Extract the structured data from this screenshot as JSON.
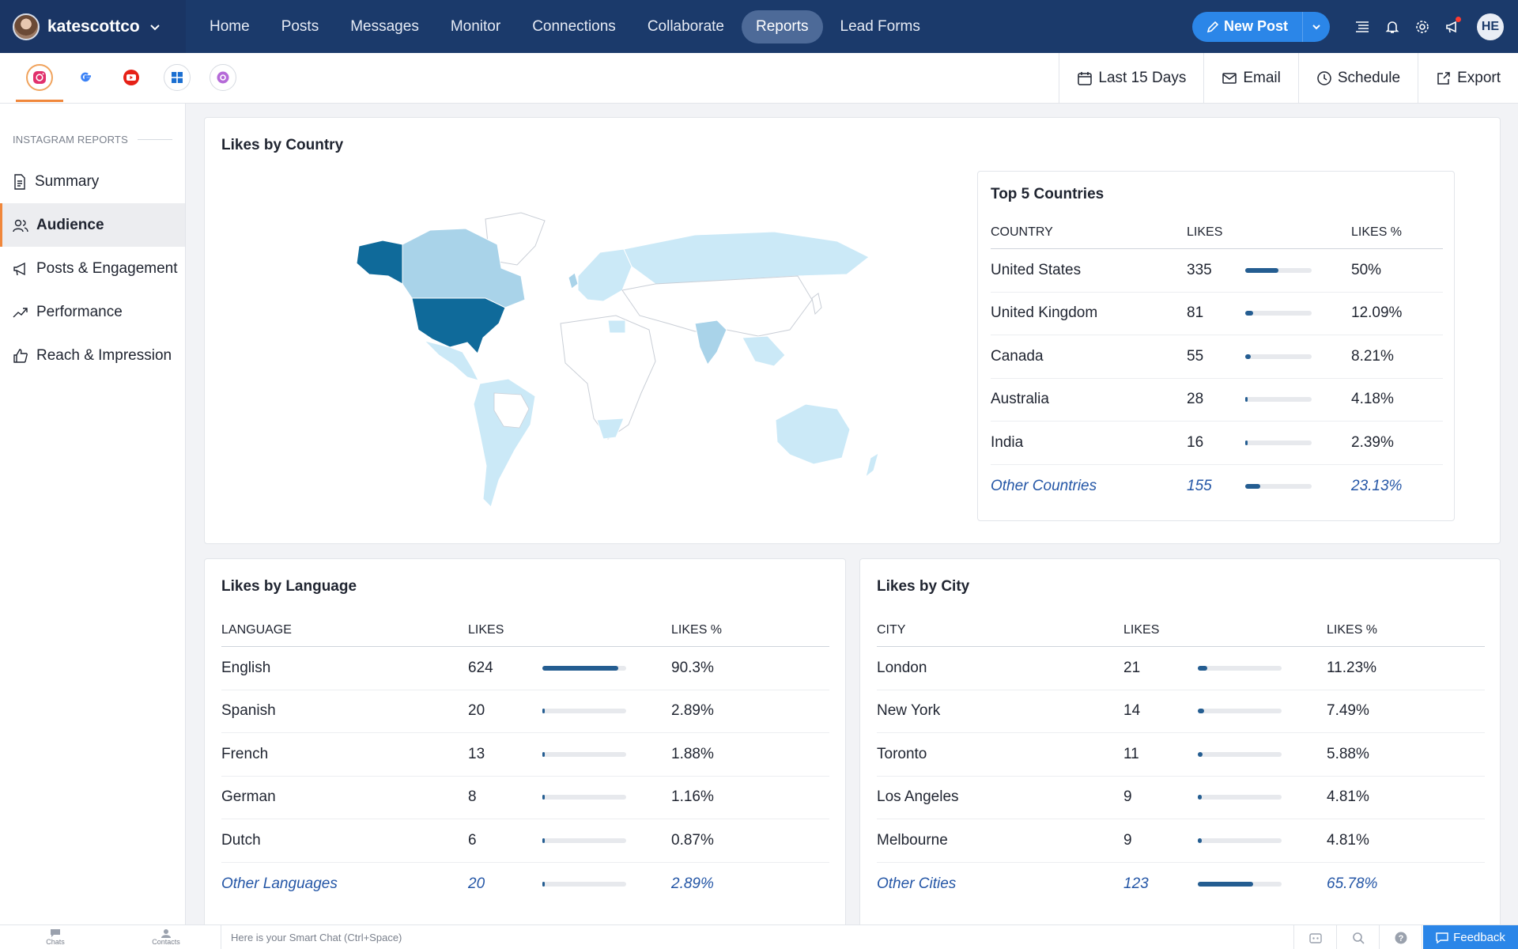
{
  "topnav": {
    "account_name": "katescottco",
    "links": [
      {
        "label": "Home"
      },
      {
        "label": "Posts"
      },
      {
        "label": "Messages"
      },
      {
        "label": "Monitor"
      },
      {
        "label": "Connections"
      },
      {
        "label": "Collaborate"
      },
      {
        "label": "Reports",
        "active": true
      },
      {
        "label": "Lead Forms"
      }
    ],
    "new_post_label": "New Post",
    "user_initials": "HE"
  },
  "subbar": {
    "channels": [
      "instagram-icon",
      "google-icon",
      "youtube-icon",
      "microsoft-icon",
      "threads-icon"
    ],
    "date_range": "Last 15 Days",
    "email_label": "Email",
    "schedule_label": "Schedule",
    "export_label": "Export"
  },
  "sidebar": {
    "header": "INSTAGRAM REPORTS",
    "items": [
      {
        "label": "Summary",
        "icon": "document-icon"
      },
      {
        "label": "Audience",
        "icon": "people-icon",
        "active": true
      },
      {
        "label": "Posts & Engagement",
        "icon": "megaphone-icon"
      },
      {
        "label": "Performance",
        "icon": "trend-icon"
      },
      {
        "label": "Reach & Impression",
        "icon": "thumbs-up-icon"
      }
    ]
  },
  "likes_by_country": {
    "title": "Likes by Country",
    "table_title": "Top 5 Countries",
    "headers": [
      "COUNTRY",
      "LIKES",
      "LIKES %"
    ],
    "rows": [
      {
        "name": "United States",
        "likes": "335",
        "pct": "50%",
        "fill": 0.5
      },
      {
        "name": "United Kingdom",
        "likes": "81",
        "pct": "12.09%",
        "fill": 0.12
      },
      {
        "name": "Canada",
        "likes": "55",
        "pct": "8.21%",
        "fill": 0.08
      },
      {
        "name": "Australia",
        "likes": "28",
        "pct": "4.18%",
        "fill": 0.04
      },
      {
        "name": "India",
        "likes": "16",
        "pct": "2.39%",
        "fill": 0.02
      },
      {
        "name": "Other Countries",
        "likes": "155",
        "pct": "23.13%",
        "fill": 0.23,
        "other": true
      }
    ]
  },
  "likes_by_language": {
    "title": "Likes by Language",
    "headers": [
      "LANGUAGE",
      "LIKES",
      "LIKES %"
    ],
    "rows": [
      {
        "name": "English",
        "likes": "624",
        "pct": "90.3%",
        "fill": 0.903
      },
      {
        "name": "Spanish",
        "likes": "20",
        "pct": "2.89%",
        "fill": 0.029
      },
      {
        "name": "French",
        "likes": "13",
        "pct": "1.88%",
        "fill": 0.019
      },
      {
        "name": "German",
        "likes": "8",
        "pct": "1.16%",
        "fill": 0.012
      },
      {
        "name": "Dutch",
        "likes": "6",
        "pct": "0.87%",
        "fill": 0.009
      },
      {
        "name": "Other Languages",
        "likes": "20",
        "pct": "2.89%",
        "fill": 0.029,
        "other": true
      }
    ]
  },
  "likes_by_city": {
    "title": "Likes by City",
    "headers": [
      "CITY",
      "LIKES",
      "LIKES %"
    ],
    "rows": [
      {
        "name": "London",
        "likes": "21",
        "pct": "11.23%",
        "fill": 0.112
      },
      {
        "name": "New York",
        "likes": "14",
        "pct": "7.49%",
        "fill": 0.075
      },
      {
        "name": "Toronto",
        "likes": "11",
        "pct": "5.88%",
        "fill": 0.059
      },
      {
        "name": "Los Angeles",
        "likes": "9",
        "pct": "4.81%",
        "fill": 0.048
      },
      {
        "name": "Melbourne",
        "likes": "9",
        "pct": "4.81%",
        "fill": 0.048
      },
      {
        "name": "Other Cities",
        "likes": "123",
        "pct": "65.78%",
        "fill": 0.658,
        "other": true
      }
    ]
  },
  "bottombar": {
    "chats_label": "Chats",
    "contacts_label": "Contacts",
    "chat_placeholder": "Here is your Smart Chat (Ctrl+Space)",
    "feedback_label": "Feedback"
  },
  "colors": {
    "nav_bg": "#1b3a6b",
    "accent_blue": "#2b86e8",
    "bar_fill": "#245d91",
    "active_orange": "#f0873b",
    "map_dark": "#0f6a9a",
    "map_mid": "#a9d3e9",
    "map_light": "#cbe9f7"
  }
}
